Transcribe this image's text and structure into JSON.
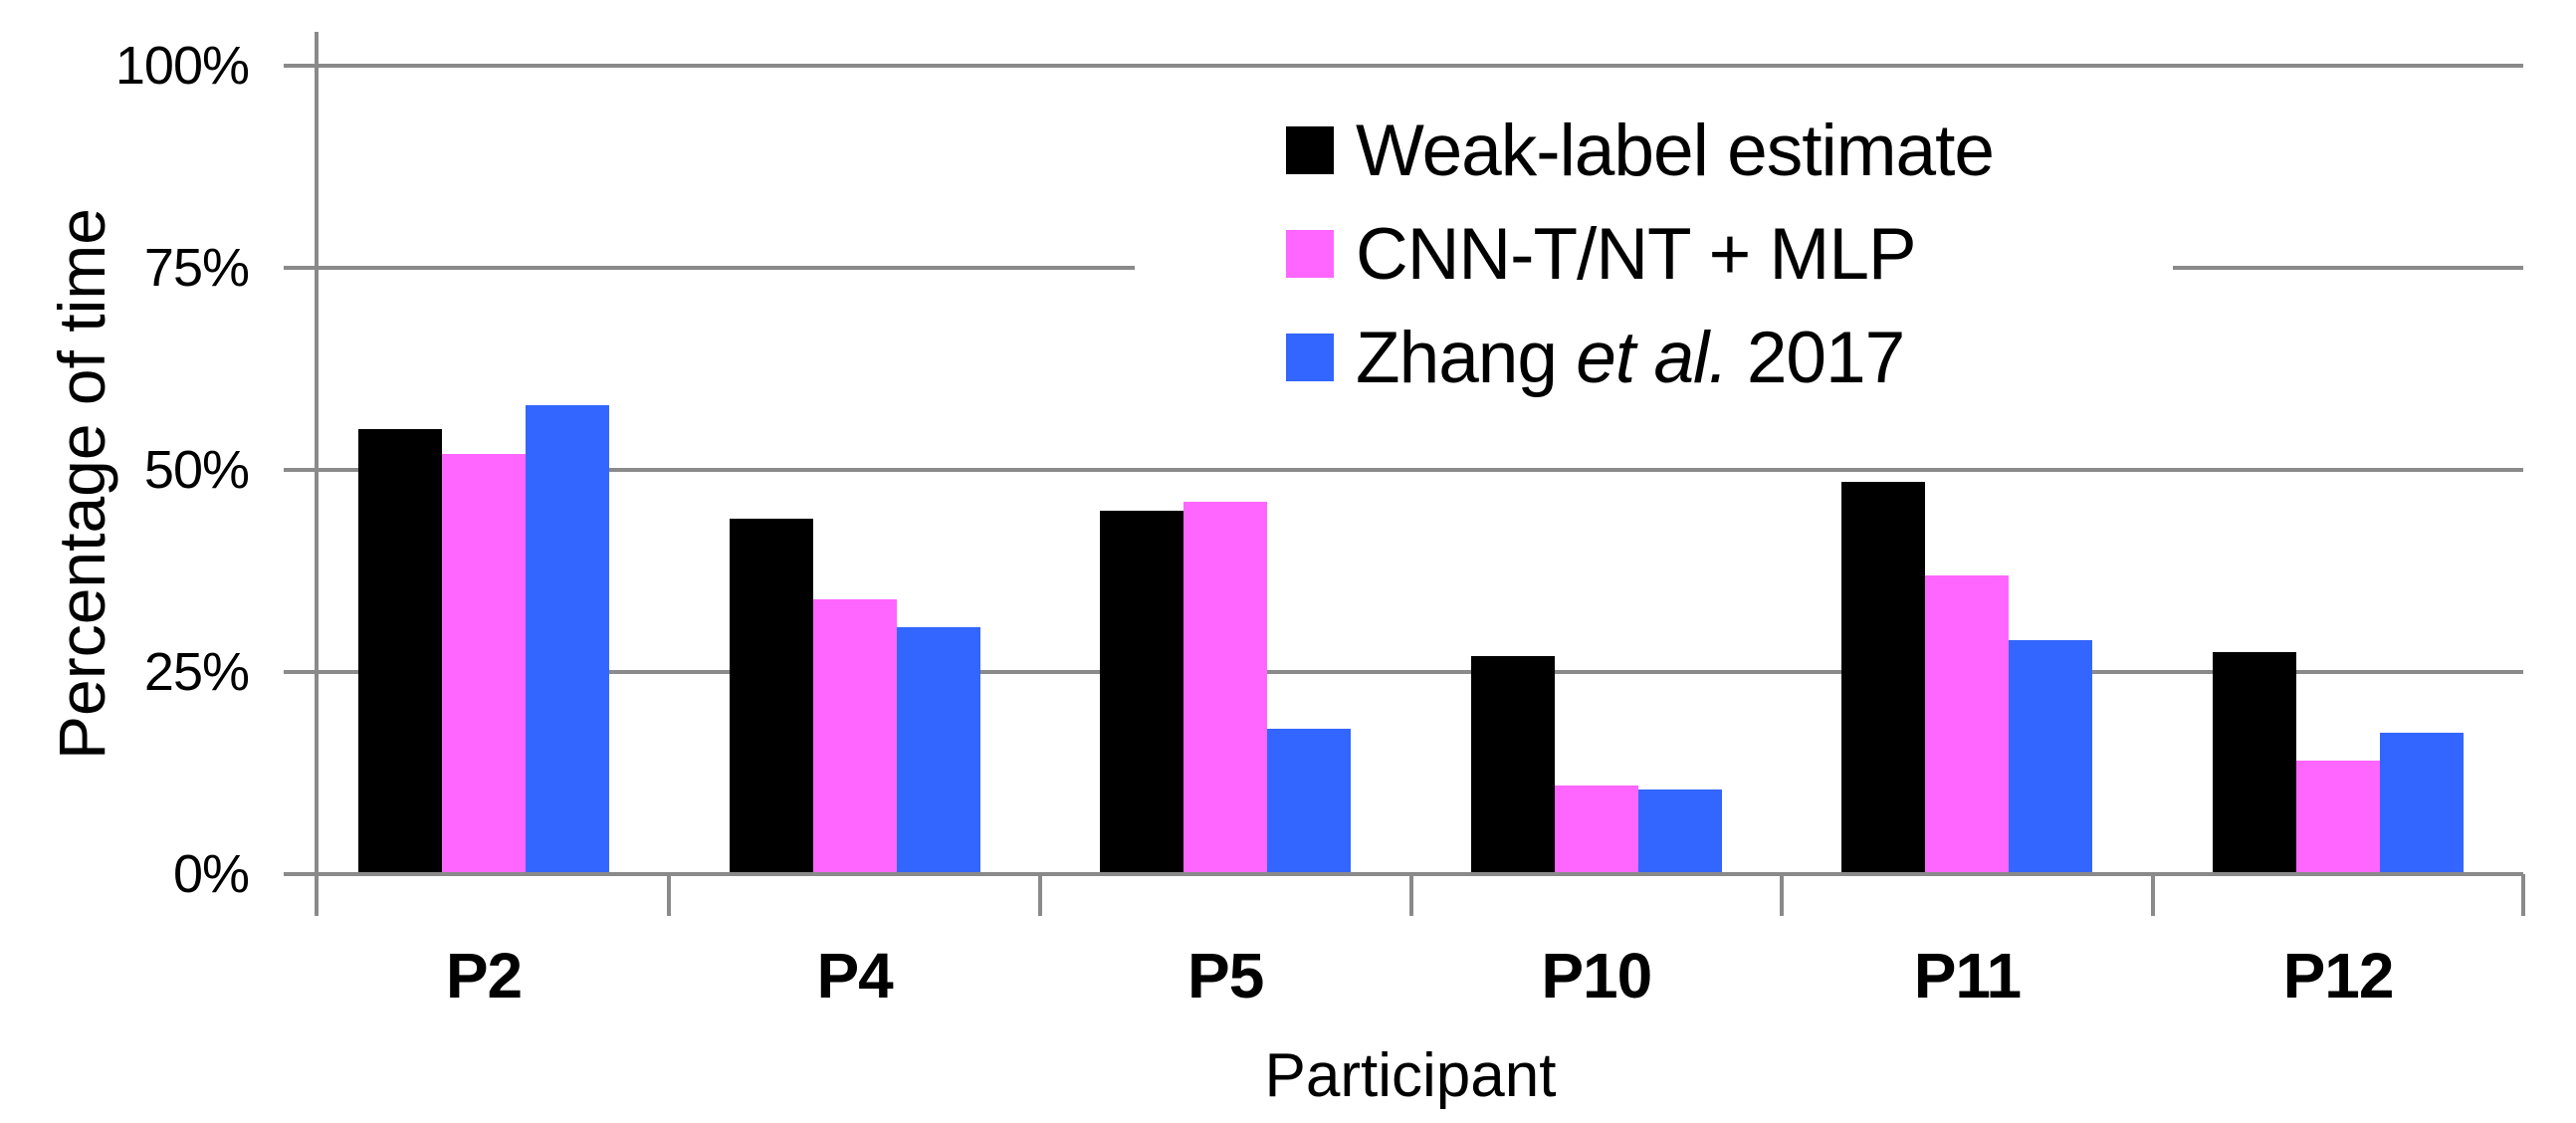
{
  "chart_data": {
    "type": "bar",
    "title": "",
    "categories": [
      "P2",
      "P4",
      "P5",
      "P10",
      "P11",
      "P12"
    ],
    "x_axis_title": "Participant",
    "y_axis_title": "Percentage of time",
    "ylim": [
      0,
      100
    ],
    "y_ticks": [
      {
        "value": 0,
        "label": "0%"
      },
      {
        "value": 25,
        "label": "25%"
      },
      {
        "value": 50,
        "label": "50%"
      },
      {
        "value": 75,
        "label": "75%"
      },
      {
        "value": 100,
        "label": "100%"
      }
    ],
    "grid": "horizontal",
    "gridline_color": "#8a8a8a",
    "background_color": "#ffffff",
    "legend_position": "inside-top-right",
    "series": [
      {
        "name": "Weak-label estimate",
        "color": "#000000",
        "values": [
          55,
          44,
          45,
          27,
          48.5,
          27.5
        ]
      },
      {
        "name": "CNN-T/NT + MLP",
        "color": "#ff66ff",
        "values": [
          52,
          34,
          46,
          11,
          37,
          14
        ]
      },
      {
        "name": "Zhang et al. 2017",
        "name_parts": {
          "pre": "Zhang ",
          "italic": "et al.",
          "post": " 2017"
        },
        "color": "#3366ff",
        "values": [
          58,
          30.5,
          18,
          10.5,
          29,
          17.5
        ]
      }
    ]
  }
}
